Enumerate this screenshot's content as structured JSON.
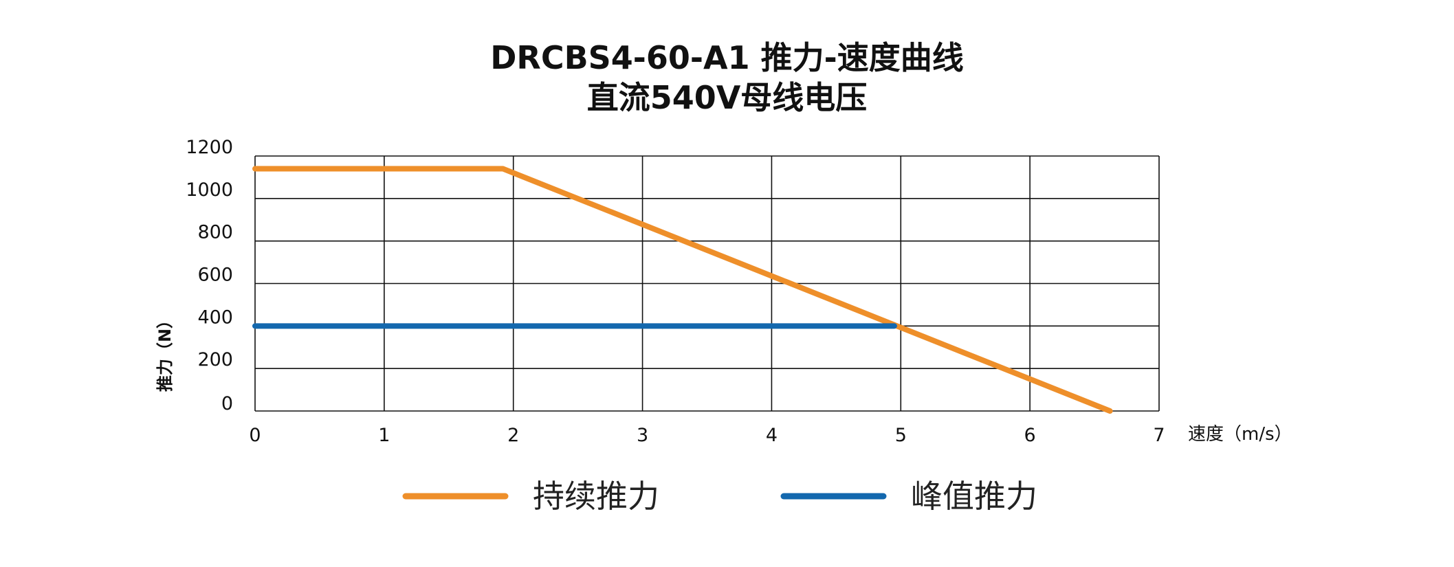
{
  "chart_data": {
    "type": "line",
    "title": "DRCBS4-60-A1 推力-速度曲线",
    "subtitle": "直流540V母线电压",
    "xlabel": "速度（m/s）",
    "ylabel": "推力（N）",
    "xlim": [
      0,
      7
    ],
    "ylim": [
      0,
      1200
    ],
    "xticks": [
      "0",
      "1",
      "2",
      "3",
      "4",
      "5",
      "6",
      "7"
    ],
    "yticks": [
      "0",
      "200",
      "400",
      "600",
      "800",
      "1000",
      "1200"
    ],
    "grid": true,
    "legend_position": "bottom",
    "series": [
      {
        "name": "持续推力",
        "color": "#EE8F2A",
        "x": [
          0,
          1.92,
          6.62
        ],
        "y": [
          1140,
          1140,
          0
        ]
      },
      {
        "name": "峰值推力",
        "color": "#1368AE",
        "x": [
          0,
          4.95
        ],
        "y": [
          400,
          400
        ]
      }
    ]
  }
}
